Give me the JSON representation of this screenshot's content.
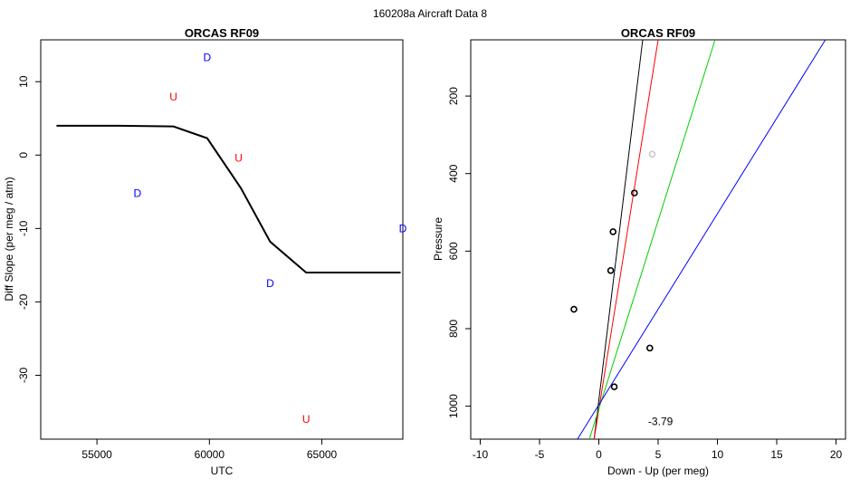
{
  "header": {
    "text": "160208a   Aircraft Data 8"
  },
  "chart_data": [
    {
      "type": "line",
      "title": "ORCAS RF09",
      "xlabel": "UTC",
      "ylabel": "Diff Slope (per meg / atm)",
      "xlim": [
        52500,
        68600
      ],
      "ylim": [
        -38.7,
        15.7
      ],
      "xticks": [
        55000,
        60000,
        65000
      ],
      "yticks": [
        -30,
        -20,
        -10,
        0,
        10
      ],
      "line": {
        "x": [
          53200,
          56000,
          58400,
          59900,
          61400,
          62700,
          64300,
          65000,
          68500
        ],
        "y": [
          4.0,
          4.0,
          3.9,
          2.3,
          -4.5,
          -11.8,
          -16.0,
          -16.0,
          -16.0
        ],
        "color": "#000000"
      },
      "markers": [
        {
          "label": "D",
          "x": 59900,
          "y": 13.3,
          "color": "#0000ff"
        },
        {
          "label": "U",
          "x": 58400,
          "y": 7.9,
          "color": "#ff0000"
        },
        {
          "label": "U",
          "x": 61300,
          "y": -0.4,
          "color": "#ff0000"
        },
        {
          "label": "D",
          "x": 56800,
          "y": -5.2,
          "color": "#0000ff"
        },
        {
          "label": "D",
          "x": 68600,
          "y": -10.0,
          "color": "#0000ff"
        },
        {
          "label": "D",
          "x": 62700,
          "y": -17.5,
          "color": "#0000ff"
        },
        {
          "label": "U",
          "x": 64300,
          "y": -36.0,
          "color": "#ff0000"
        }
      ]
    },
    {
      "type": "scatter",
      "title": "ORCAS RF09",
      "xlabel": "Down - Up (per meg)",
      "ylabel": "Pressure",
      "xlim": [
        -10.8,
        20.8
      ],
      "ylim": [
        1085,
        55
      ],
      "xticks": [
        -10,
        -5,
        0,
        5,
        10,
        15,
        20
      ],
      "yticks": [
        200,
        400,
        600,
        800,
        1000
      ],
      "points": [
        {
          "x": 3.0,
          "y": 450,
          "color": "#000000"
        },
        {
          "x": 1.2,
          "y": 550,
          "color": "#000000"
        },
        {
          "x": 1.0,
          "y": 650,
          "color": "#000000"
        },
        {
          "x": -2.1,
          "y": 750,
          "color": "#000000"
        },
        {
          "x": 4.3,
          "y": 850,
          "color": "#000000"
        },
        {
          "x": 1.3,
          "y": 950,
          "color": "#000000"
        },
        {
          "x": 4.5,
          "y": 350,
          "color": "#c8c8c8"
        }
      ],
      "fit_lines": [
        {
          "color": "#000000",
          "from": [
            -0.4,
            1085
          ],
          "to": [
            3.7,
            55
          ]
        },
        {
          "color": "#ff0000",
          "from": [
            -0.4,
            1085
          ],
          "to": [
            5.0,
            55
          ]
        },
        {
          "color": "#00cc00",
          "from": [
            -0.8,
            1085
          ],
          "to": [
            9.8,
            55
          ]
        },
        {
          "color": "#0000ff",
          "from": [
            -1.8,
            1085
          ],
          "to": [
            19.1,
            55
          ]
        }
      ],
      "annotation": {
        "text": "-3.79",
        "x": 5.2,
        "y": 1040
      }
    }
  ]
}
